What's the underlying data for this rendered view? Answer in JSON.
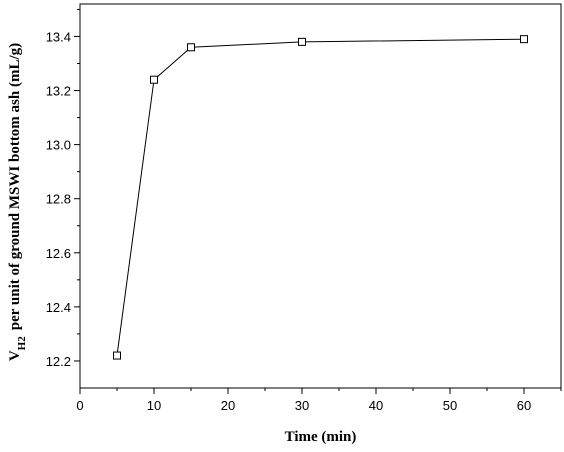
{
  "chart_data": {
    "type": "line",
    "xlabel": "Time (min)",
    "ylabel_prefix": "V",
    "ylabel_sub": "H2",
    "ylabel_rest": "per unit of ground MSWI bottom ash (mL/g)",
    "xlim": [
      0,
      65
    ],
    "ylim": [
      12.1,
      13.52
    ],
    "x_ticks": [
      0,
      10,
      20,
      30,
      40,
      50,
      60
    ],
    "x_minor_ticks": [
      5,
      15,
      25,
      35,
      45,
      55,
      65
    ],
    "x_tick_labels": [
      "0",
      "10",
      "20",
      "30",
      "40",
      "50",
      "60"
    ],
    "y_ticks": [
      12.2,
      12.4,
      12.6,
      12.8,
      13.0,
      13.2,
      13.4
    ],
    "y_minor_ticks": [
      12.3,
      12.5,
      12.7,
      12.9,
      13.1,
      13.3,
      13.5
    ],
    "y_tick_labels": [
      "12.2",
      "12.4",
      "12.6",
      "12.8",
      "13.0",
      "13.2",
      "13.4"
    ],
    "grid": false,
    "legend": "none",
    "series": [
      {
        "marker": "open-square",
        "color": "#000000",
        "x": [
          5,
          10,
          15,
          30,
          60
        ],
        "y": [
          12.22,
          13.24,
          13.36,
          13.38,
          13.39
        ]
      }
    ]
  }
}
